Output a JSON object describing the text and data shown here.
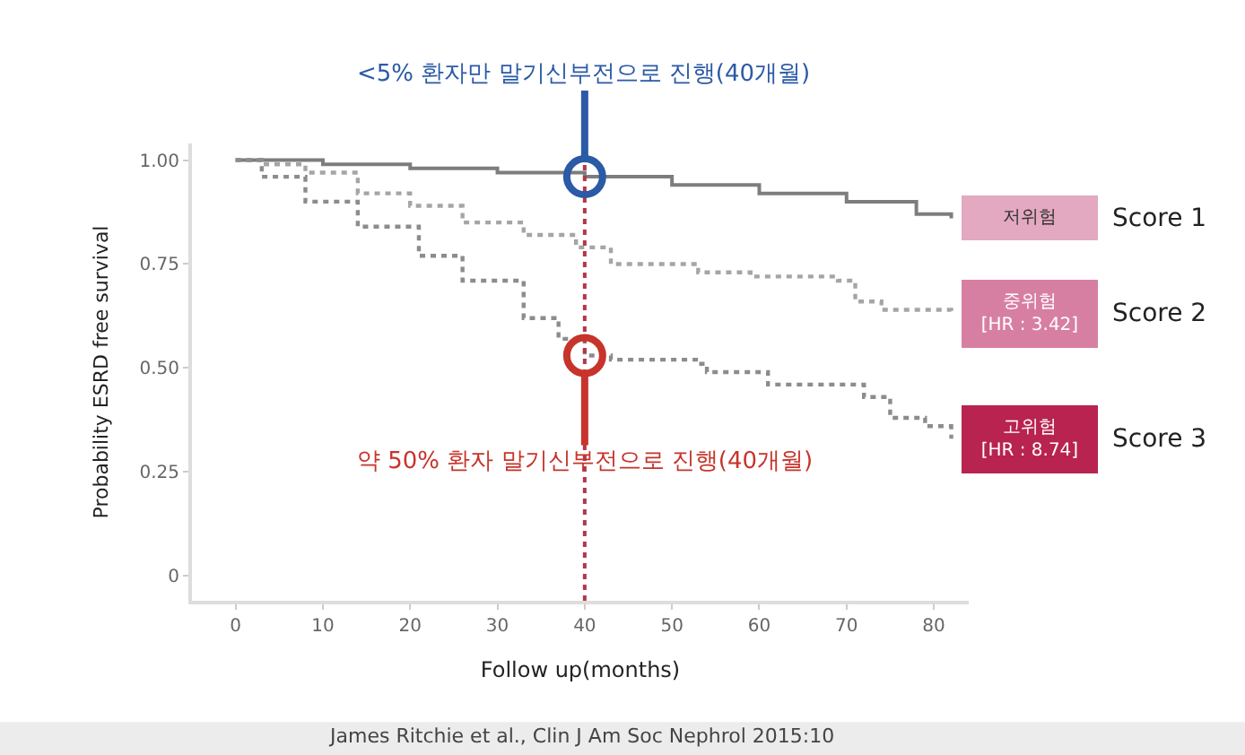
{
  "chart_data": {
    "type": "step",
    "xlabel": "Follow up(months)",
    "ylabel": "Probability ESRD free survival",
    "series": [
      {
        "name": "Score 1",
        "color": "#7d7d7d",
        "line_style": "solid",
        "x": [
          0,
          10,
          20,
          30,
          40,
          50,
          60,
          70,
          78,
          82
        ],
        "values": [
          1.0,
          0.99,
          0.98,
          0.97,
          0.96,
          0.94,
          0.92,
          0.9,
          0.87,
          0.86
        ]
      },
      {
        "name": "Score 2",
        "color": "#a5a5a5",
        "line_style": "dotted",
        "x": [
          0,
          3,
          8,
          14,
          20,
          26,
          33,
          39,
          43,
          53,
          59,
          69,
          71,
          74,
          82
        ],
        "values": [
          1.0,
          0.99,
          0.97,
          0.92,
          0.89,
          0.85,
          0.82,
          0.79,
          0.75,
          0.73,
          0.72,
          0.71,
          0.66,
          0.64,
          0.63
        ]
      },
      {
        "name": "Score 3",
        "color": "#8c8c8c",
        "line_style": "dotted",
        "x": [
          0,
          3,
          8,
          14,
          21,
          26,
          33,
          37,
          40,
          43,
          53,
          54,
          61,
          72,
          75,
          79,
          82
        ],
        "values": [
          1.0,
          0.96,
          0.9,
          0.84,
          0.77,
          0.71,
          0.62,
          0.57,
          0.53,
          0.52,
          0.51,
          0.49,
          0.46,
          0.43,
          0.38,
          0.36,
          0.33
        ]
      }
    ],
    "ref_lines": [
      {
        "axis": "x",
        "value": 40,
        "color": "#b5364a",
        "line_style": "dotted"
      }
    ],
    "annotations": [
      {
        "text": "<5% 환자만 말기신부전으로 진행(40개월)",
        "x": 40,
        "y": 0.96
      },
      {
        "text": "약 50% 환자 말기신부전으로 진행(40개월)",
        "x": 40,
        "y": 0.53
      },
      "저위험",
      "중위험\n[HR : 3.42]",
      "고위험\n[HR : 8.74]",
      "James Ritchie et al., Clin J Am Soc Nephrol 2015:10"
    ],
    "xlim": [
      -5,
      84
    ],
    "ylim": [
      -0.06,
      1.04
    ],
    "xticks": [
      0,
      10,
      20,
      30,
      40,
      50,
      60,
      70,
      80
    ],
    "yticks": [
      0,
      {
        "value": 0.25,
        "label": "0.25"
      },
      {
        "value": 0.5,
        "label": "0.50"
      },
      {
        "value": 0.75,
        "label": "0.75"
      },
      {
        "value": 1,
        "label": "1.00"
      }
    ],
    "legend": false
  }
}
